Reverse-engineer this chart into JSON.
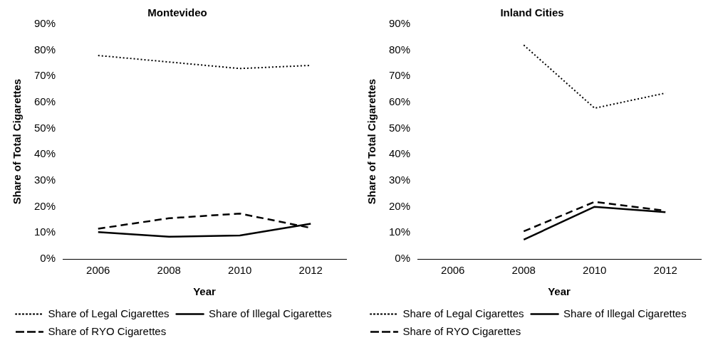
{
  "chart_data": [
    {
      "type": "line",
      "title": "Montevideo",
      "xlabel": "Year",
      "ylabel": "Share of Total Cigarettes",
      "categories": [
        "2006",
        "2008",
        "2010",
        "2012"
      ],
      "ylim": [
        0,
        90
      ],
      "yticks": [
        {
          "value": 0,
          "label": "0%"
        },
        {
          "value": 10,
          "label": "10%"
        },
        {
          "value": 20,
          "label": "20%"
        },
        {
          "value": 30,
          "label": "30%"
        },
        {
          "value": 40,
          "label": "40%"
        },
        {
          "value": 50,
          "label": "50%"
        },
        {
          "value": 60,
          "label": "60%"
        },
        {
          "value": 70,
          "label": "70%"
        },
        {
          "value": 80,
          "label": "80%"
        },
        {
          "value": 90,
          "label": "90%"
        }
      ],
      "grid": false,
      "legend": "bottom",
      "marker": "none",
      "series": [
        {
          "name": "Share of Legal Cigarettes",
          "color": "#000000",
          "line_style": "dotted",
          "values": [
            78,
            75.5,
            73,
            74.2
          ]
        },
        {
          "name": "Share of Illegal Cigarettes",
          "color": "#000000",
          "line_style": "solid",
          "values": [
            10.3,
            8.5,
            9,
            13.5
          ]
        },
        {
          "name": "Share of RYO Cigarettes",
          "color": "#000000",
          "line_style": "dashed",
          "values": [
            11.6,
            15.6,
            17.4,
            11.9
          ]
        }
      ]
    },
    {
      "type": "line",
      "title": "Inland Cities",
      "xlabel": "Year",
      "ylabel": "Share of Total Cigarettes",
      "categories": [
        "2006",
        "2008",
        "2010",
        "2012"
      ],
      "ylim": [
        0,
        90
      ],
      "yticks": [
        {
          "value": 0,
          "label": "0%"
        },
        {
          "value": 10,
          "label": "10%"
        },
        {
          "value": 20,
          "label": "20%"
        },
        {
          "value": 30,
          "label": "30%"
        },
        {
          "value": 40,
          "label": "40%"
        },
        {
          "value": 50,
          "label": "50%"
        },
        {
          "value": 60,
          "label": "60%"
        },
        {
          "value": 70,
          "label": "70%"
        },
        {
          "value": 80,
          "label": "80%"
        },
        {
          "value": 90,
          "label": "90%"
        }
      ],
      "grid": false,
      "legend": "bottom",
      "marker": "none",
      "series": [
        {
          "name": "Share of Legal Cigarettes",
          "color": "#000000",
          "line_style": "dotted",
          "values": [
            null,
            82,
            57.8,
            63.6
          ]
        },
        {
          "name": "Share of Illegal Cigarettes",
          "color": "#000000",
          "line_style": "solid",
          "values": [
            null,
            7.4,
            20,
            17.9
          ]
        },
        {
          "name": "Share of RYO Cigarettes",
          "color": "#000000",
          "line_style": "dashed",
          "values": [
            null,
            10.6,
            21.9,
            18.5
          ]
        }
      ]
    }
  ]
}
